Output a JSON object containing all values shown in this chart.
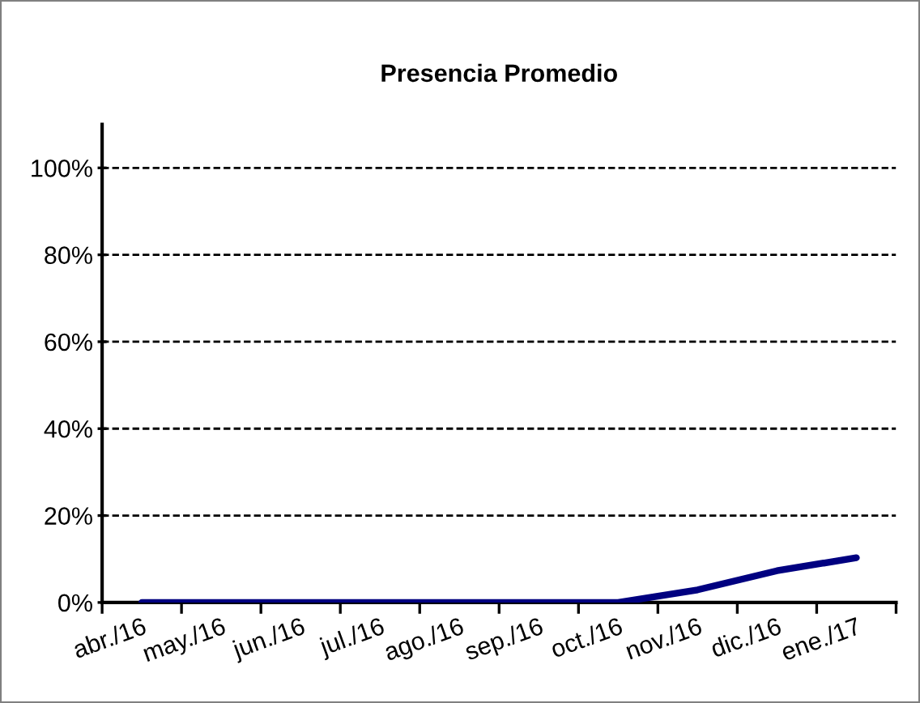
{
  "chart_data": {
    "type": "line",
    "title": "Presencia Promedio",
    "categories": [
      "abr./16",
      "may./16",
      "jun./16",
      "jul./16",
      "ago./16",
      "sep./16",
      "oct./16",
      "nov./16",
      "dic./16",
      "ene./17"
    ],
    "values": [
      0,
      0,
      0,
      0,
      0,
      0,
      0,
      2.9,
      7.3,
      10.3
    ],
    "color": "#000080",
    "ylim": [
      0,
      110
    ],
    "yticks": [
      {
        "value": 0,
        "label": "0%"
      },
      {
        "value": 20,
        "label": "20%"
      },
      {
        "value": 40,
        "label": "40%"
      },
      {
        "value": 60,
        "label": "60%"
      },
      {
        "value": 80,
        "label": "80%"
      },
      {
        "value": 100,
        "label": "100%"
      }
    ],
    "grid": "y"
  }
}
